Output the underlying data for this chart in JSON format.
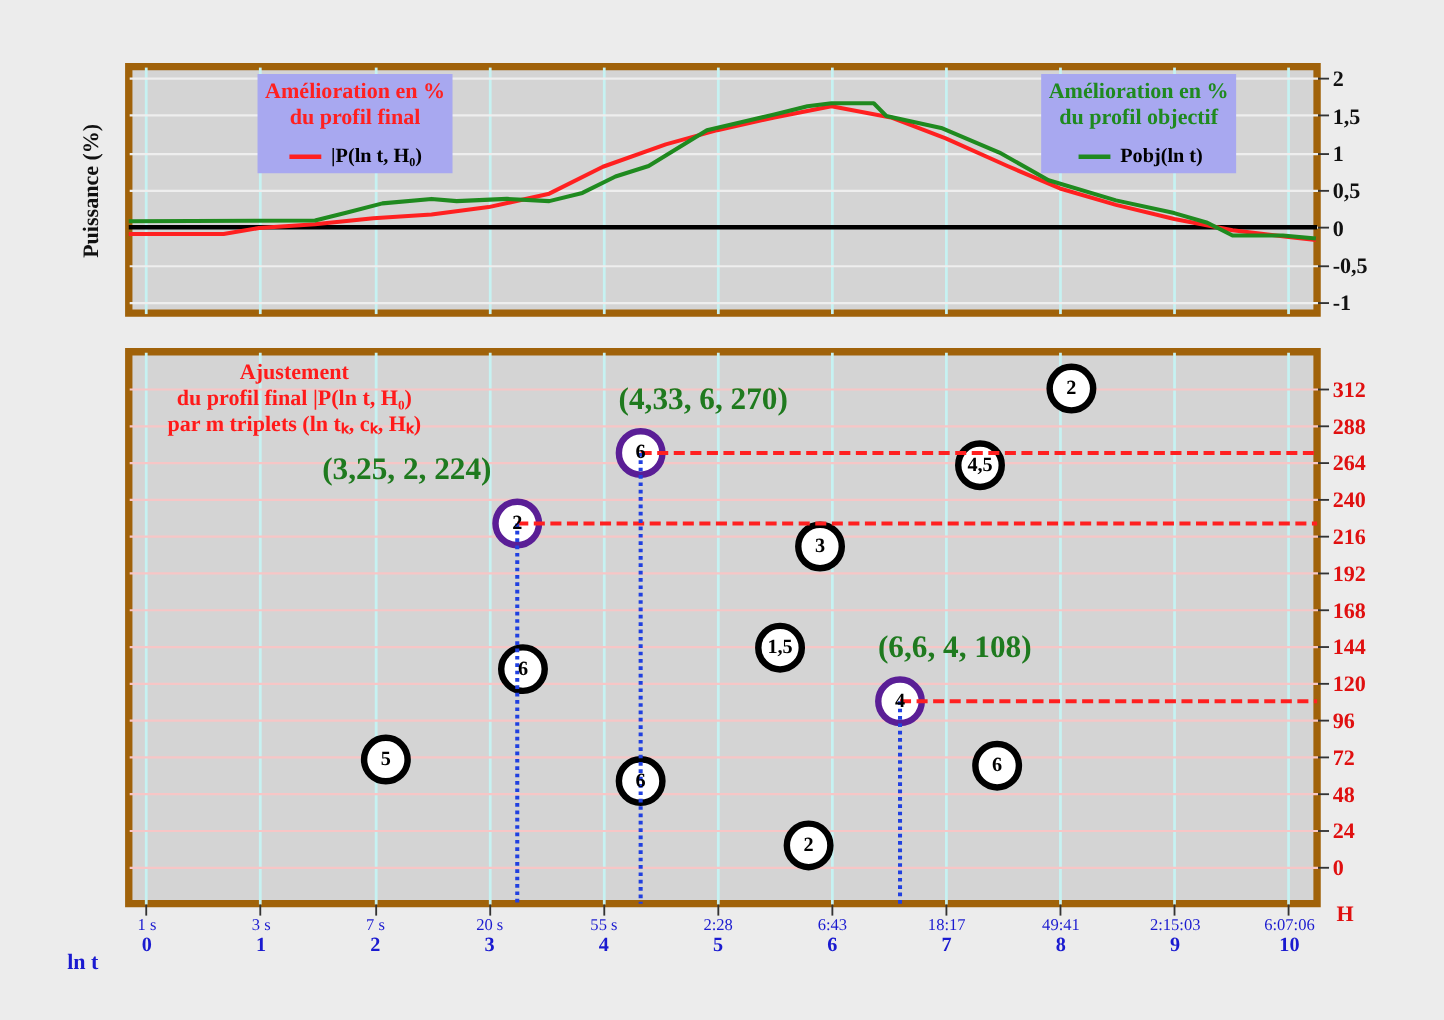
{
  "chart_data": [
    {
      "type": "line",
      "ylabel": "Puissance (%)",
      "xlim": [
        -0.15,
        10.25
      ],
      "xticks": [
        0,
        1,
        2,
        3,
        4,
        5,
        6,
        7,
        8,
        9,
        10
      ],
      "ylim": [
        -1.15,
        2.15
      ],
      "yticks": [
        -1,
        {
          "value": -0.5,
          "label": "-0,5"
        },
        0,
        {
          "value": 0.5,
          "label": "0,5"
        },
        1,
        {
          "value": 1.5,
          "label": "1,5"
        },
        2
      ],
      "tick_labels": "y",
      "grid": true,
      "legend": "top",
      "annotations": [
        "Amélioration en %\ndu profil final",
        "Amélioration en %\ndu profil objectif"
      ],
      "ref_lines": [
        {
          "axis": "y",
          "value": 0,
          "color": "#000000"
        }
      ],
      "series": [
        {
          "name": "|P(ln t, H₀)",
          "color": "#ff2020",
          "x": [
            -0.15,
            0.68,
            0.99,
            1.48,
            1.99,
            2.5,
            3.0,
            3.53,
            4.0,
            4.55,
            5.0,
            5.5,
            6.0,
            6.52,
            7.0,
            7.54,
            8.0,
            8.49,
            9.0,
            9.51,
            10.0,
            10.24
          ],
          "values": [
            -0.09,
            -0.09,
            -0.01,
            0.04,
            0.12,
            0.17,
            0.27,
            0.45,
            0.81,
            1.11,
            1.3,
            1.47,
            1.62,
            1.47,
            1.19,
            0.82,
            0.52,
            0.3,
            0.11,
            -0.04,
            -0.13,
            -0.17
          ]
        },
        {
          "name": "Pobj(ln t)",
          "color": "#1f8a1f",
          "x": [
            -0.15,
            1.48,
            1.77,
            2.07,
            2.5,
            2.72,
            3.16,
            3.53,
            3.82,
            4.11,
            4.4,
            4.91,
            5.5,
            5.79,
            6.0,
            6.37,
            6.48,
            6.96,
            7.47,
            7.9,
            8.49,
            9.0,
            9.29,
            9.51,
            9.95,
            10.24
          ],
          "values": [
            0.08,
            0.09,
            0.2,
            0.32,
            0.38,
            0.35,
            0.38,
            0.35,
            0.46,
            0.68,
            0.82,
            1.3,
            1.51,
            1.62,
            1.66,
            1.66,
            1.49,
            1.33,
            1.0,
            0.63,
            0.36,
            0.19,
            0.06,
            -0.11,
            -0.11,
            -0.15
          ]
        }
      ]
    },
    {
      "type": "scatter",
      "xlabel": "ln t",
      "ylabel": "H",
      "xlim": [
        -0.15,
        10.25
      ],
      "xticks": [
        0,
        1,
        2,
        3,
        4,
        5,
        6,
        7,
        8,
        9,
        10
      ],
      "x2lim": [
        0.86,
        28283
      ],
      "log": "x2",
      "x2ticks": [
        {
          "value": 1,
          "label": "1 s"
        },
        {
          "value": 2.718,
          "label": "3 s"
        },
        {
          "value": 7.389,
          "label": "7 s"
        },
        {
          "value": 20.09,
          "label": "20 s"
        },
        {
          "value": 54.6,
          "label": "55 s"
        },
        {
          "value": 148.4,
          "label": "2:28"
        },
        {
          "value": 403.4,
          "label": "6:43"
        },
        {
          "value": 1096.6,
          "label": "18:17"
        },
        {
          "value": 2981,
          "label": "49:41"
        },
        {
          "value": 8103,
          "label": "2:15:03"
        },
        {
          "value": 22026,
          "label": "6:07:06"
        }
      ],
      "ylim": [
        -24,
        336
      ],
      "yticks": [
        0,
        24,
        48,
        72,
        96,
        120,
        144,
        168,
        192,
        216,
        240,
        264,
        288,
        312
      ],
      "grid": true,
      "annotations": [
        "Ajustement\ndu profil final |P(ln t, H₀)\npar m triplets (ln tₖ, cₖ, Hₖ)",
        {
          "text": "5",
          "x": 2.1,
          "y": 70
        },
        {
          "text": "6",
          "x": 3.3,
          "y": 129
        },
        {
          "text": "6",
          "x": 4.33,
          "y": 56
        },
        {
          "text": "1,5",
          "x": 5.55,
          "y": 143
        },
        {
          "text": "3",
          "x": 5.9,
          "y": 209
        },
        {
          "text": "2",
          "x": 5.8,
          "y": 14
        },
        {
          "text": "4,5",
          "x": 7.3,
          "y": 262
        },
        {
          "text": "6",
          "x": 7.45,
          "y": 66
        },
        {
          "text": "2",
          "x": 8.1,
          "y": 312
        },
        {
          "text": "2",
          "x": 3.25,
          "y": 224
        },
        {
          "text": "6",
          "x": 4.33,
          "y": 270
        },
        {
          "text": "4",
          "x": 6.6,
          "y": 108
        },
        {
          "text": "(3,25, 2, 224)",
          "x": 3.25,
          "y": 224
        },
        {
          "text": "(4,33, 6, 270)",
          "x": 4.33,
          "y": 270
        },
        {
          "text": "(6,6, 4, 108)",
          "x": 6.6,
          "y": 108
        }
      ],
      "series": [
        {
          "type": "line",
          "line_style": "dashed",
          "color": "#ff2020",
          "x": [
            3.25,
            10.25
          ],
          "values": [
            224,
            224
          ]
        },
        {
          "type": "line",
          "line_style": "dashed",
          "color": "#ff2020",
          "x": [
            4.33,
            10.25
          ],
          "values": [
            270,
            270
          ]
        },
        {
          "type": "line",
          "line_style": "dashed",
          "color": "#ff2020",
          "x": [
            6.6,
            10.25
          ],
          "values": [
            108,
            108
          ]
        },
        {
          "type": "line",
          "line_style": "dotted",
          "color": "#2040e0",
          "x": [
            3.25,
            3.25
          ],
          "values": [
            224,
            -24
          ]
        },
        {
          "type": "line",
          "line_style": "dotted",
          "color": "#2040e0",
          "x": [
            4.33,
            4.33
          ],
          "values": [
            270,
            -24
          ]
        },
        {
          "type": "line",
          "line_style": "dotted",
          "color": "#2040e0",
          "x": [
            6.6,
            6.6
          ],
          "values": [
            108,
            -24
          ]
        },
        {
          "marker": "circle",
          "color": "#000000",
          "x": [
            2.1,
            3.3,
            4.33,
            5.55,
            5.9,
            5.8,
            7.3,
            7.45,
            8.1
          ],
          "values": [
            70,
            129,
            56,
            143,
            209,
            14,
            262,
            66,
            312
          ]
        },
        {
          "marker": "circle",
          "color": "#5a1e96",
          "x": [
            3.25,
            4.33,
            6.6
          ],
          "values": [
            224,
            270,
            108
          ]
        }
      ]
    }
  ]
}
